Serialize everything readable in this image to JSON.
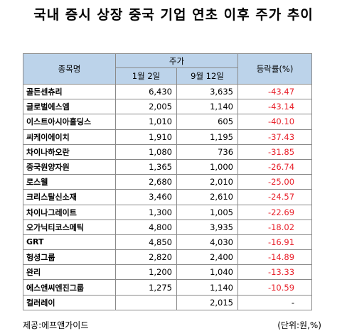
{
  "title": "국내 증시 상장 중국 기업 연초 이후 주가 추이",
  "headers": {
    "name": "종목명",
    "price_group": "주가",
    "col_jan": "1월 2일",
    "col_sep": "9월 12일",
    "change": "등락률(%)"
  },
  "chart_data": {
    "type": "table",
    "title": "국내 증시 상장 중국 기업 연초 이후 주가 추이",
    "columns": [
      "종목명",
      "1월 2일",
      "9월 12일",
      "등락률(%)"
    ],
    "rows": [
      {
        "name": "골든센츄리",
        "jan": "6,430",
        "sep": "3,635",
        "change": "-43.47"
      },
      {
        "name": "글로벌에스엠",
        "jan": "2,005",
        "sep": "1,140",
        "change": "-43.14"
      },
      {
        "name": "이스트아시아홀딩스",
        "jan": "1,010",
        "sep": "605",
        "change": "-40.10"
      },
      {
        "name": "씨케이에이치",
        "jan": "1,910",
        "sep": "1,195",
        "change": "-37.43"
      },
      {
        "name": "차이나하오란",
        "jan": "1,080",
        "sep": "736",
        "change": "-31.85"
      },
      {
        "name": "중국원양자원",
        "jan": "1,365",
        "sep": "1,000",
        "change": "-26.74"
      },
      {
        "name": "로스웰",
        "jan": "2,680",
        "sep": "2,010",
        "change": "-25.00"
      },
      {
        "name": "크리스탈신소재",
        "jan": "3,460",
        "sep": "2,610",
        "change": "-24.57"
      },
      {
        "name": "차이나그레이트",
        "jan": "1,300",
        "sep": "1,005",
        "change": "-22.69"
      },
      {
        "name": "오가닉티코스메틱",
        "jan": "4,800",
        "sep": "3,935",
        "change": "-18.02"
      },
      {
        "name": "GRT",
        "jan": "4,850",
        "sep": "4,030",
        "change": "-16.91"
      },
      {
        "name": "헝셩그룹",
        "jan": "2,820",
        "sep": "2,400",
        "change": "-14.89"
      },
      {
        "name": "완리",
        "jan": "1,200",
        "sep": "1,040",
        "change": "-13.33"
      },
      {
        "name": "에스앤씨엔진그룹",
        "jan": "1,275",
        "sep": "1,140",
        "change": "-10.59"
      },
      {
        "name": "컬러레이",
        "jan": "",
        "sep": "2,015",
        "change": "-"
      }
    ]
  },
  "colors": {
    "header_bg": "#bcd3ea",
    "negative": "#e8202a",
    "border": "#8a8a8a"
  },
  "footer": {
    "source": "제공:에프앤가이드",
    "unit": "(단위:원,%)"
  }
}
